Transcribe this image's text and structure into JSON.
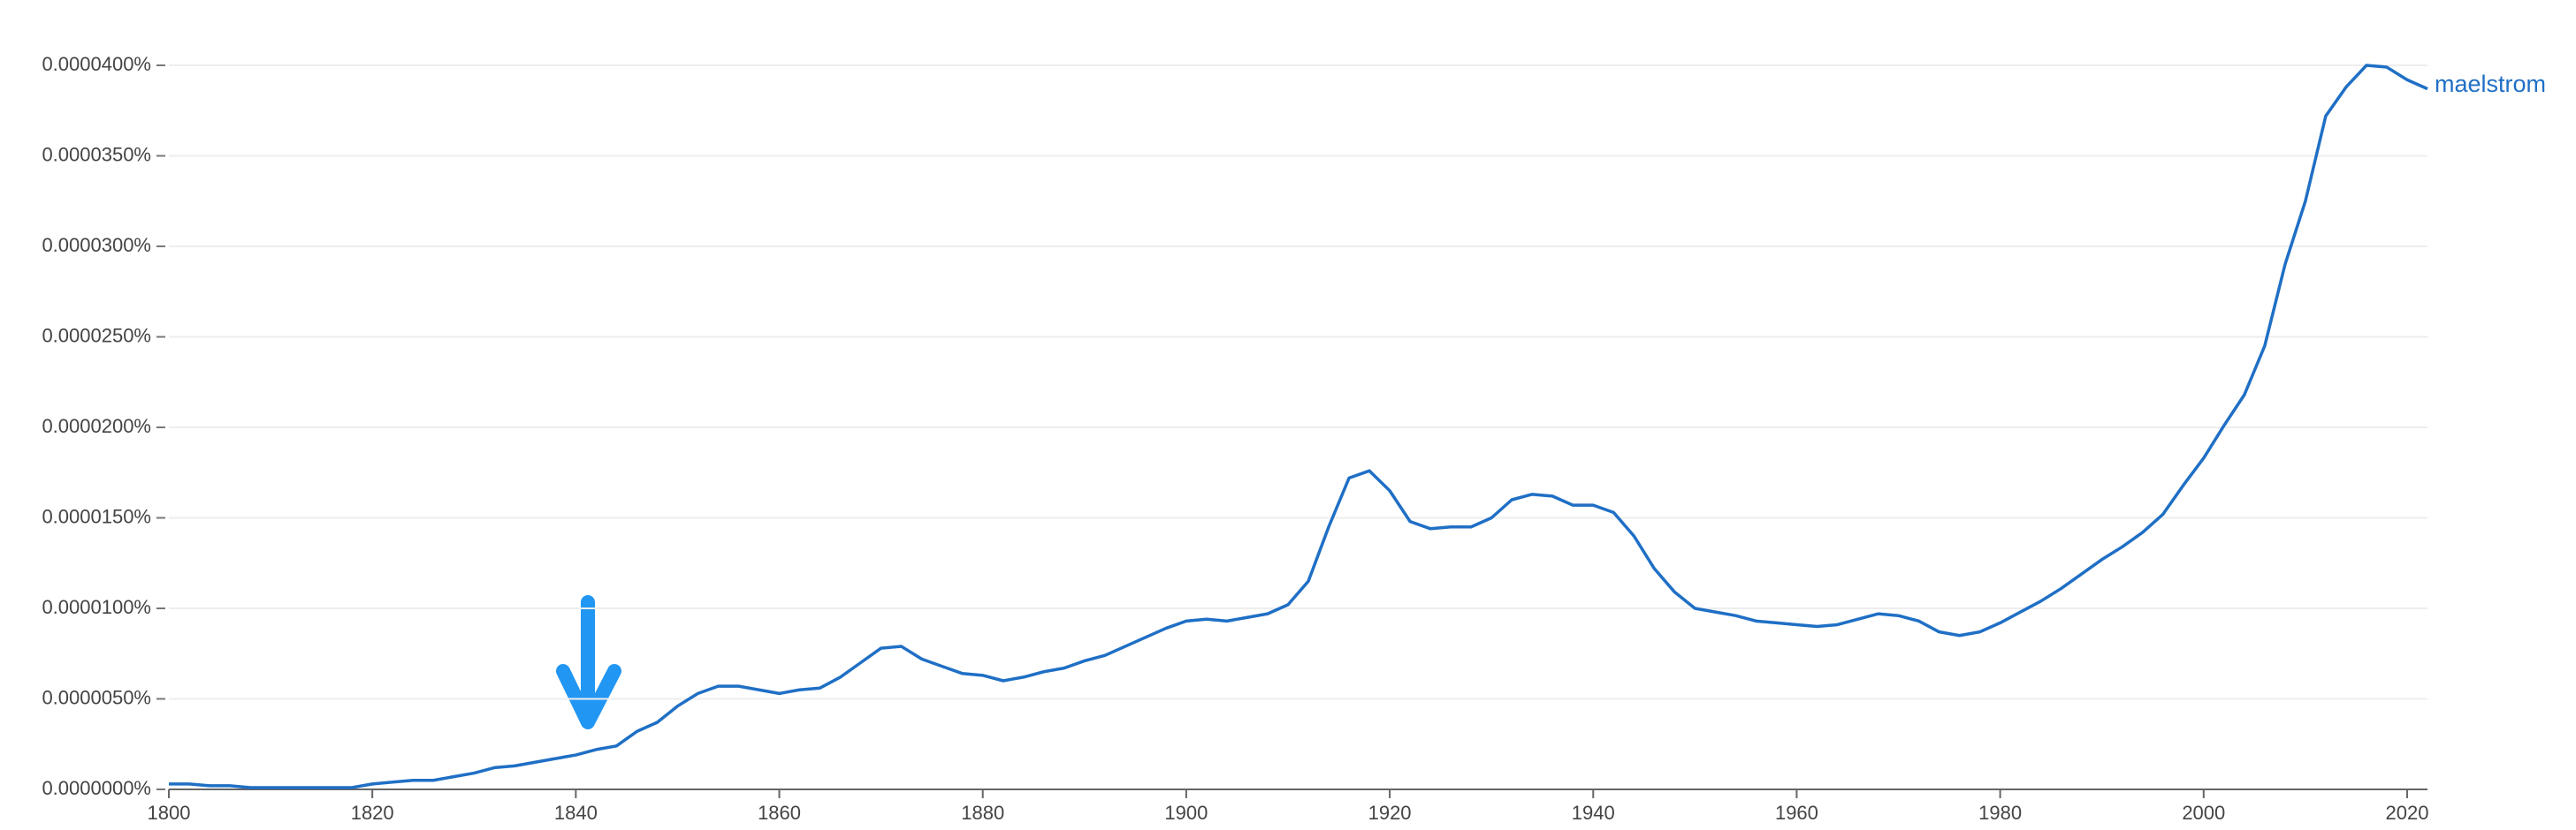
{
  "chart_data": {
    "type": "line",
    "x": [
      1800,
      1802,
      1804,
      1806,
      1808,
      1810,
      1812,
      1814,
      1816,
      1818,
      1820,
      1822,
      1824,
      1826,
      1828,
      1830,
      1832,
      1834,
      1836,
      1838,
      1840,
      1842,
      1844,
      1846,
      1848,
      1850,
      1852,
      1854,
      1856,
      1858,
      1860,
      1862,
      1864,
      1866,
      1868,
      1870,
      1872,
      1874,
      1876,
      1878,
      1880,
      1882,
      1884,
      1886,
      1888,
      1890,
      1892,
      1894,
      1896,
      1898,
      1900,
      1902,
      1904,
      1906,
      1908,
      1910,
      1912,
      1914,
      1916,
      1918,
      1920,
      1922,
      1924,
      1926,
      1928,
      1930,
      1932,
      1934,
      1936,
      1938,
      1940,
      1942,
      1944,
      1946,
      1948,
      1950,
      1952,
      1954,
      1956,
      1958,
      1960,
      1962,
      1964,
      1966,
      1968,
      1970,
      1972,
      1974,
      1976,
      1978,
      1980,
      1982,
      1984,
      1986,
      1988,
      1990,
      1992,
      1994,
      1996,
      1998,
      2000,
      2002,
      2004,
      2006,
      2008,
      2010,
      2012,
      2014,
      2016,
      2018,
      2020,
      2022
    ],
    "series": [
      {
        "name": "maelstrom",
        "color": "#1f6fc5",
        "values": [
          3e-07,
          3e-07,
          2e-07,
          2e-07,
          1e-07,
          1e-07,
          1e-07,
          1e-07,
          1e-07,
          1e-07,
          3e-07,
          4e-07,
          5e-07,
          5e-07,
          7e-07,
          9e-07,
          1.2e-06,
          1.3e-06,
          1.5e-06,
          1.7e-06,
          1.9e-06,
          2.2e-06,
          2.4e-06,
          3.2e-06,
          3.7e-06,
          4.6e-06,
          5.3e-06,
          5.7e-06,
          5.7e-06,
          5.5e-06,
          5.3e-06,
          5.5e-06,
          5.6e-06,
          6.2e-06,
          7e-06,
          7.8e-06,
          7.9e-06,
          7.2e-06,
          6.8e-06,
          6.4e-06,
          6.3e-06,
          6e-06,
          6.2e-06,
          6.5e-06,
          6.7e-06,
          7.1e-06,
          7.4e-06,
          7.9e-06,
          8.4e-06,
          8.9e-06,
          9.3e-06,
          9.4e-06,
          9.3e-06,
          9.5e-06,
          9.7e-06,
          1.02e-05,
          1.15e-05,
          1.45e-05,
          1.72e-05,
          1.76e-05,
          1.65e-05,
          1.48e-05,
          1.44e-05,
          1.45e-05,
          1.45e-05,
          1.5e-05,
          1.6e-05,
          1.63e-05,
          1.62e-05,
          1.57e-05,
          1.57e-05,
          1.53e-05,
          1.4e-05,
          1.22e-05,
          1.09e-05,
          1e-05,
          9.8e-06,
          9.6e-06,
          9.3e-06,
          9.2e-06,
          9.1e-06,
          9e-06,
          9.1e-06,
          9.4e-06,
          9.7e-06,
          9.6e-06,
          9.3e-06,
          8.7e-06,
          8.5e-06,
          8.7e-06,
          9.2e-06,
          9.8e-06,
          1.04e-05,
          1.11e-05,
          1.19e-05,
          1.27e-05,
          1.34e-05,
          1.42e-05,
          1.52e-05,
          1.68e-05,
          1.83e-05,
          2.01e-05,
          2.18e-05,
          2.45e-05,
          2.9e-05,
          3.25e-05,
          3.72e-05,
          3.88e-05,
          4e-05,
          3.99e-05,
          3.92e-05,
          3.87e-05
        ]
      }
    ],
    "xlim": [
      1800,
      2022
    ],
    "xticks": [
      1800,
      1820,
      1840,
      1860,
      1880,
      1900,
      1920,
      1940,
      1960,
      1980,
      2000,
      2020
    ],
    "ylim": [
      0,
      4e-05
    ],
    "yticks": [
      {
        "value": 0,
        "label": "0.0000000%"
      },
      {
        "value": 5e-06,
        "label": "0.0000050%"
      },
      {
        "value": 1e-05,
        "label": "0.0000100%"
      },
      {
        "value": 1.5e-05,
        "label": "0.0000150%"
      },
      {
        "value": 2e-05,
        "label": "0.0000200%"
      },
      {
        "value": 2.5e-05,
        "label": "0.0000250%"
      },
      {
        "value": 3e-05,
        "label": "0.0000300%"
      },
      {
        "value": 3.5e-05,
        "label": "0.0000350%"
      },
      {
        "value": 4e-05,
        "label": "0.0000400%"
      }
    ],
    "grid": true
  }
}
